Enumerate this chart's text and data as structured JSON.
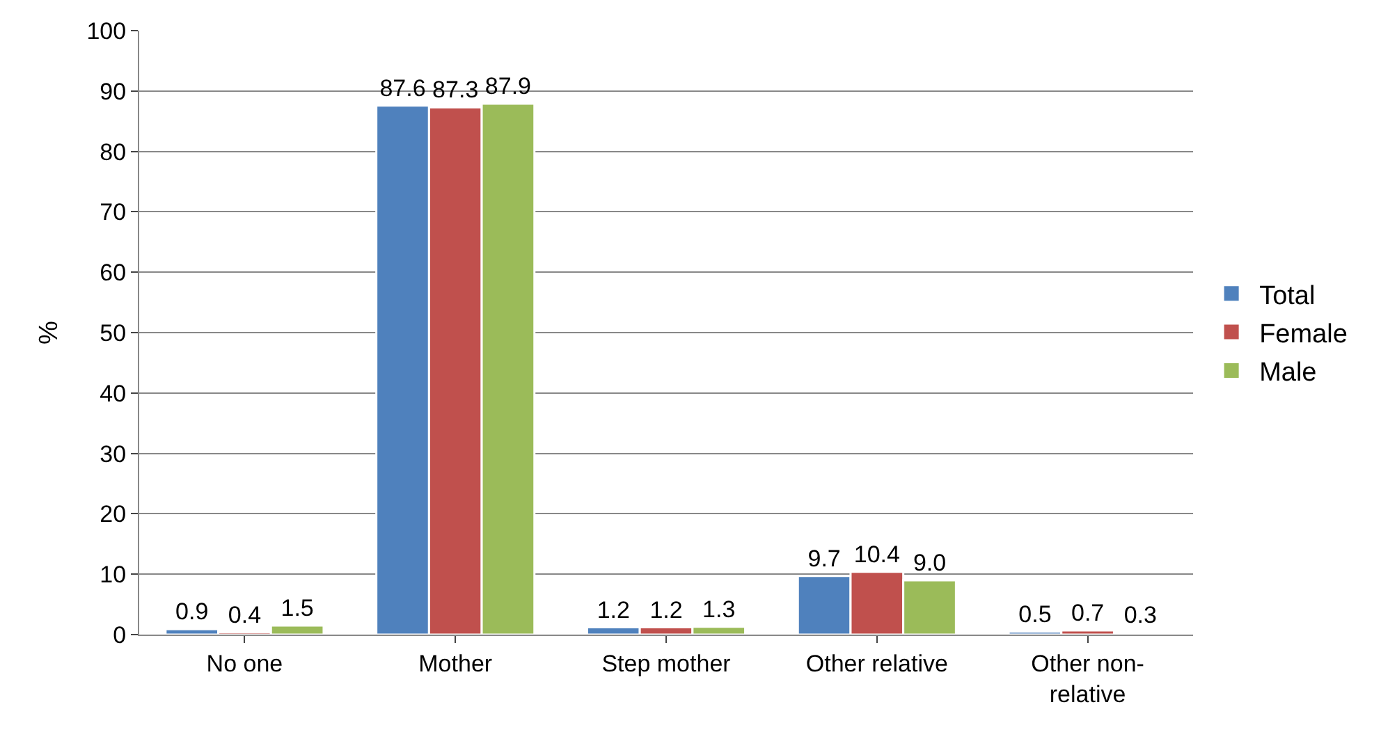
{
  "chart_data": {
    "type": "bar",
    "ylabel": "%",
    "categories": [
      "No one",
      "Mother",
      "Step mother",
      "Other relative",
      "Other non-relative"
    ],
    "series": [
      {
        "name": "Total",
        "color": "#4f81bd",
        "values": [
          0.9,
          87.6,
          1.2,
          9.7,
          0.5
        ],
        "value_labels": [
          "0.9",
          "87.6",
          "1.2",
          "9.7",
          "0.5"
        ]
      },
      {
        "name": "Female",
        "color": "#c0504d",
        "values": [
          0.4,
          87.3,
          1.2,
          10.4,
          0.7
        ],
        "value_labels": [
          "0.4",
          "87.3",
          "1.2",
          "10.4",
          "0.7"
        ]
      },
      {
        "name": "Male",
        "color": "#9bbb59",
        "values": [
          1.5,
          87.9,
          1.3,
          9.0,
          0.3
        ],
        "value_labels": [
          "1.5",
          "87.9",
          "1.3",
          "9.0",
          "0.3"
        ]
      }
    ],
    "ylim": [
      0,
      100
    ],
    "yticks": [
      0,
      10,
      20,
      30,
      40,
      50,
      60,
      70,
      80,
      90,
      100
    ],
    "grid": "y",
    "legend": "right"
  }
}
